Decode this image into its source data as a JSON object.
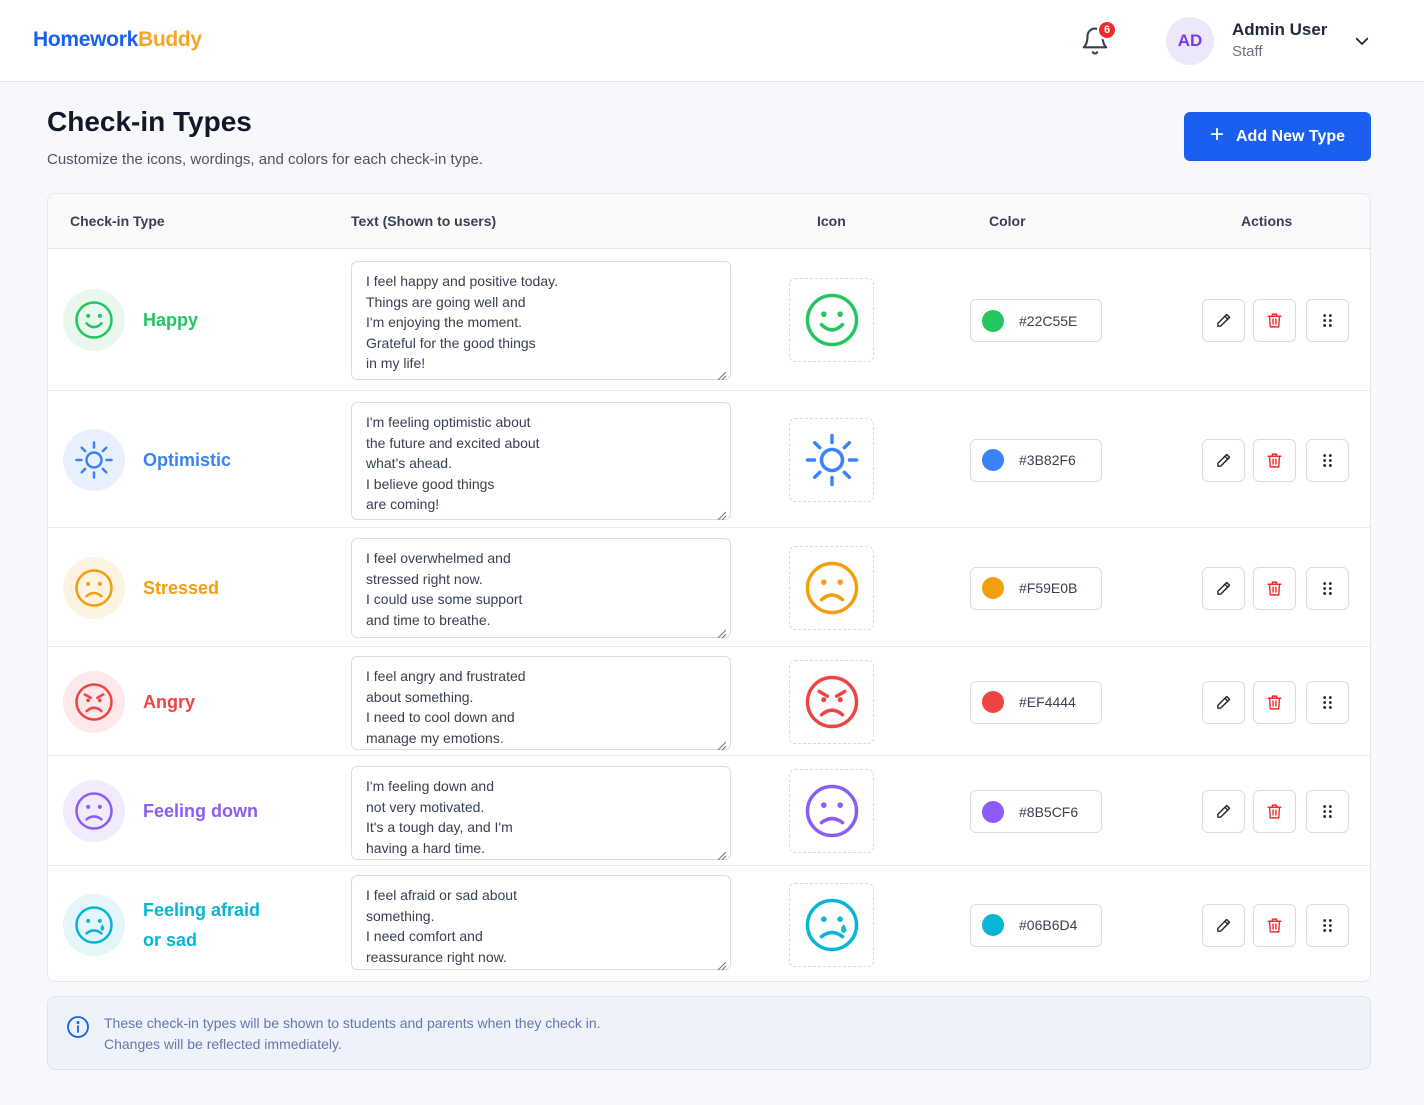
{
  "header": {
    "logo_part1": "Homework",
    "logo_part2": "Buddy",
    "notification_count": "6",
    "avatar_initials": "AD",
    "user_name": "Admin User",
    "user_role": "Staff"
  },
  "page": {
    "title": "Check-in Types",
    "subtitle": "Customize the icons, wordings, and colors for each check-in type.",
    "add_button_label": "Add New Type"
  },
  "table": {
    "columns": [
      "Check-in Type",
      "Text (Shown to users)",
      "Icon",
      "Color",
      "Actions"
    ],
    "rows": [
      {
        "name": "Happy",
        "text": "I feel happy and positive today.\nThings are going well and\nI'm enjoying the moment.\nGrateful for the good things\nin my life!",
        "icon": "smile-icon",
        "color": "#22C55E",
        "bg": "#e9f8ee"
      },
      {
        "name": "Optimistic",
        "text": "I'm feeling optimistic about\nthe future and excited about\nwhat's ahead.\nI believe good things\nare coming!",
        "icon": "sun-icon",
        "color": "#3B82F6",
        "bg": "#e8f0fd"
      },
      {
        "name": "Stressed",
        "text": "I feel overwhelmed and\nstressed right now.\nI could use some support\nand time to breathe.",
        "icon": "stressed-face-icon",
        "color": "#F59E0B",
        "bg": "#fdf3e3"
      },
      {
        "name": "Angry",
        "text": "I feel angry and frustrated\nabout something.\nI need to cool down and\nmanage my emotions.",
        "icon": "angry-face-icon",
        "color": "#EF4444",
        "bg": "#fde9e9"
      },
      {
        "name": "Feeling down",
        "text": "I'm feeling down and\nnot very motivated.\nIt's a tough day, and I'm\nhaving a hard time.",
        "icon": "sad-face-icon",
        "color": "#8B5CF6",
        "bg": "#f1ebfd"
      },
      {
        "name": "Feeling afraid or sad",
        "text": "I feel afraid or sad about\nsomething.\nI need comfort and\nreassurance right now.",
        "icon": "tearful-face-icon",
        "color": "#06B6D4",
        "bg": "#e4f6fa"
      }
    ]
  },
  "info": {
    "line1": "These check-in types will be shown to students and parents when they check in.",
    "line2": "Changes will be reflected immediately."
  },
  "colors": {
    "brand_blue": "#1a5ff0",
    "brand_orange": "#f5a524",
    "delete_red": "#ef2b2b",
    "badge_red": "#ef2b2b"
  }
}
